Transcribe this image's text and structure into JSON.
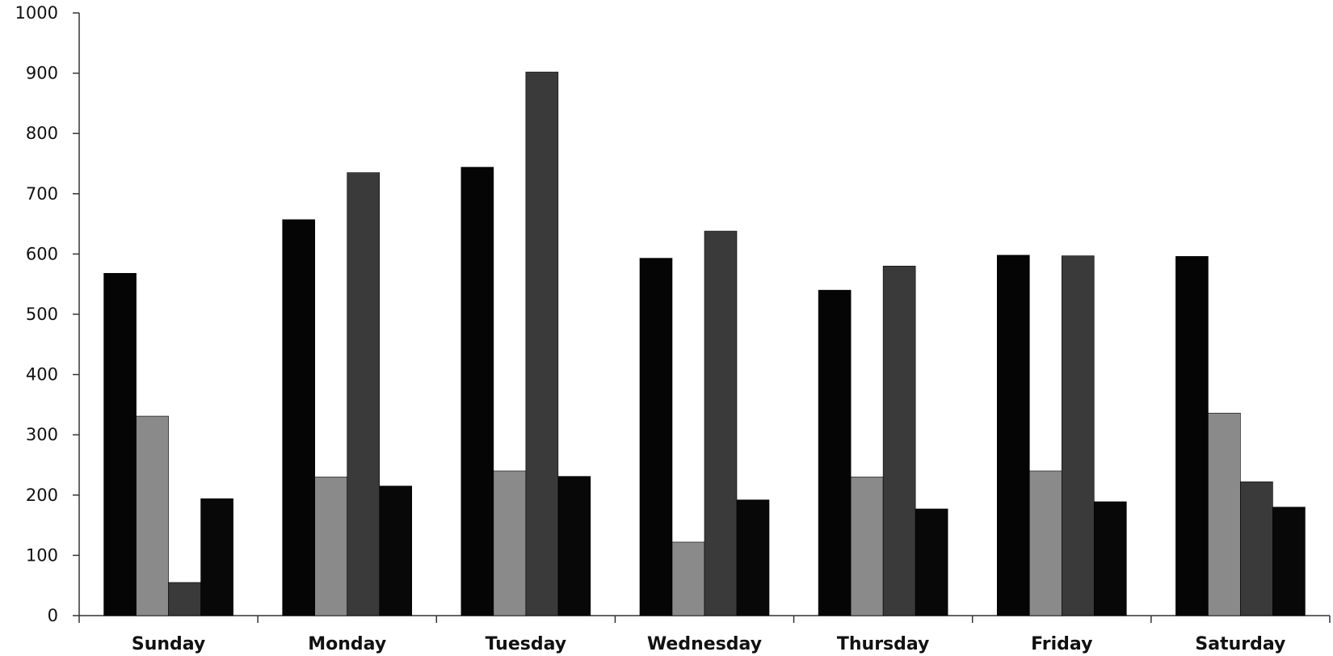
{
  "chart_data": {
    "type": "bar",
    "title": "",
    "xlabel": "",
    "ylabel": "",
    "categories": [
      "Sunday",
      "Monday",
      "Tuesday",
      "Wednesday",
      "Thursday",
      "Friday",
      "Saturday"
    ],
    "series": [
      {
        "values": [
          568,
          657,
          744,
          593,
          540,
          598,
          596
        ],
        "color": "#050505"
      },
      {
        "values": [
          331,
          230,
          240,
          122,
          230,
          240,
          336
        ],
        "color": "#8a8a8a"
      },
      {
        "values": [
          55,
          735,
          902,
          638,
          580,
          597,
          222
        ],
        "color": "#3a3a3a"
      },
      {
        "values": [
          194,
          215,
          231,
          192,
          177,
          189,
          180
        ],
        "color": "#080808"
      }
    ],
    "ylim": [
      0,
      1000
    ],
    "yticks": [
      0,
      100,
      200,
      300,
      400,
      500,
      600,
      700,
      800,
      900,
      1000
    ],
    "grid": false,
    "legend": "none"
  }
}
